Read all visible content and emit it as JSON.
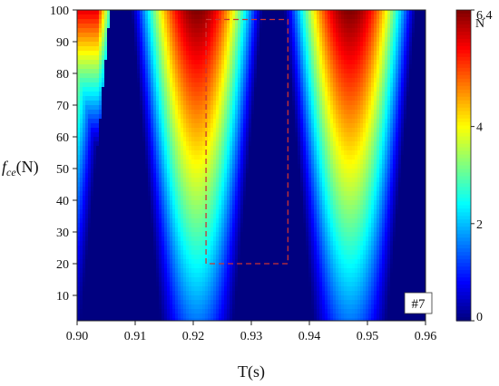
{
  "chart_data": {
    "type": "heatmap",
    "title": "",
    "xlabel": "T(s)",
    "ylabel_symbol": "f",
    "ylabel_subscript": "ce",
    "ylabel_unit": "(N)",
    "xlim": [
      0.9,
      0.96
    ],
    "ylim": [
      2,
      100
    ],
    "x_ticks": [
      "0.90",
      "0.91",
      "0.92",
      "0.93",
      "0.94",
      "0.95",
      "0.96"
    ],
    "y_ticks": [
      "10",
      "20",
      "30",
      "40",
      "50",
      "60",
      "70",
      "80",
      "90",
      "100"
    ],
    "colorbar": {
      "label": "N",
      "min": 0,
      "max": 6.4,
      "ticks": [
        "0",
        "2",
        "4",
        "6.4"
      ],
      "colormap": "jet"
    },
    "valleys_x": [
      0.9075,
      0.9338,
      0.9602
    ],
    "peaks_x": [
      0.9206,
      0.947
    ],
    "z_max_at_top": 6.4,
    "zero_band_half_width_at_top": 0.0018,
    "zero_band_half_width_at_bottom": 0.0068,
    "highlight_box": {
      "x": [
        0.9222,
        0.9363
      ],
      "y": [
        20,
        97
      ],
      "color": "#cc3333",
      "style": "dashed"
    },
    "panel_label": "#7"
  }
}
